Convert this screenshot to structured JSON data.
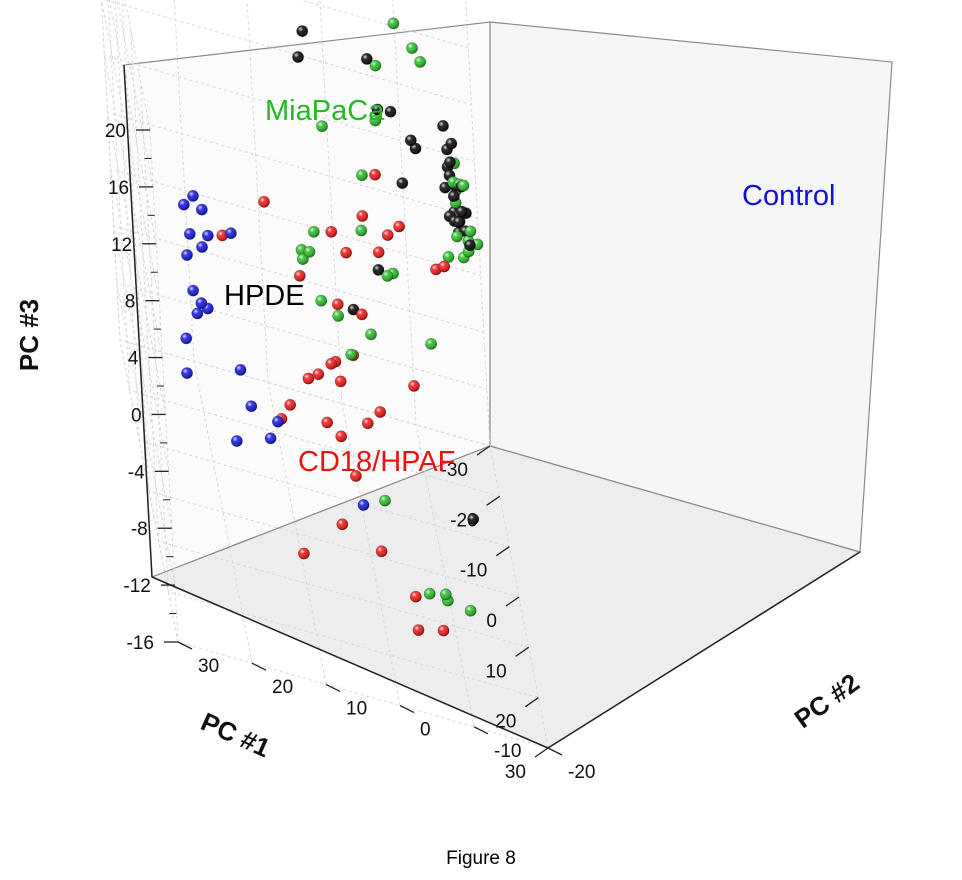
{
  "caption": "Figure 8",
  "chart_data": {
    "type": "scatter",
    "projection": "3d",
    "axes": {
      "x": {
        "label": "PC #1",
        "range": [
          -30,
          30
        ],
        "ticks": [
          -30,
          -20,
          -10,
          0,
          10,
          20,
          30
        ]
      },
      "y": {
        "label": "PC #2",
        "range": [
          -20,
          30
        ],
        "ticks": [
          -20,
          -10,
          0,
          10,
          20,
          30
        ]
      },
      "z": {
        "label": "PC #3",
        "range": [
          -16,
          20
        ],
        "ticks": [
          -16,
          -12,
          -8,
          -4,
          0,
          4,
          8,
          12,
          16,
          20
        ]
      }
    },
    "grid": true,
    "legend": "none",
    "groups": [
      {
        "name": "MiaPaCa",
        "color": "#22bb22"
      },
      {
        "name": "HPDE",
        "color": "#000000"
      },
      {
        "name": "Control",
        "color": "#1010dd"
      },
      {
        "name": "CD18/HPAF",
        "color": "#ee1111"
      }
    ],
    "series": [
      {
        "group": "HPDE",
        "color": "#000000",
        "points": [
          [
            -25.3,
            -15.5,
            7.5
          ],
          [
            -24.8,
            -17.5,
            3.7
          ],
          [
            -24.3,
            -16.1,
            5.4
          ],
          [
            -26.2,
            -16.6,
            6.1
          ],
          [
            -25.0,
            -16.0,
            4.2
          ],
          [
            -24.7,
            -16.4,
            2.9
          ],
          [
            -25.2,
            -15.8,
            4.7
          ],
          [
            -25.8,
            -16.8,
            3.3
          ],
          [
            -24.0,
            -17.3,
            2.2
          ],
          [
            -25.4,
            -18.0,
            1.7
          ],
          [
            -23.7,
            -16.8,
            1.5
          ],
          [
            -26.0,
            -15.4,
            2.9
          ],
          [
            -24.5,
            -16.3,
            1.2
          ],
          [
            -25.6,
            -17.1,
            0.9
          ],
          [
            -25.6,
            -15.9,
            5.8
          ],
          [
            -26.8,
            -17.0,
            -0.3
          ],
          [
            -26.3,
            -17.9,
            0.1
          ],
          [
            -24.2,
            -18.2,
            -0.1
          ],
          [
            -27.0,
            -15.9,
            0.6
          ],
          [
            -28.5,
            -16.7,
            0.5
          ],
          [
            -22.4,
            -10.7,
            6.8
          ],
          [
            -23.6,
            -11.4,
            5.9
          ],
          [
            -22.3,
            -9.2,
            3.6
          ],
          [
            -19.5,
            -5.0,
            12.7
          ],
          [
            -19.8,
            -6.1,
            9.2
          ],
          [
            -21.0,
            -8.0,
            8.9
          ],
          [
            -19.4,
            -5.0,
            -2.1
          ],
          [
            -16.6,
            -1.0,
            -4.5
          ],
          [
            -13.8,
            4.2,
            15.3
          ],
          [
            -12.5,
            5.1,
            13.8
          ],
          [
            17.9,
            -12.6,
            -5.3
          ]
        ]
      },
      {
        "group": "MiaPaCa",
        "color": "#22bb22",
        "points": [
          [
            -27.8,
            -17.0,
            4.2
          ],
          [
            -26.7,
            -16.8,
            1.8
          ],
          [
            -26.1,
            -17.4,
            1.4
          ],
          [
            -26.1,
            -16.9,
            2.9
          ],
          [
            -25.2,
            -17.3,
            3.7
          ],
          [
            -24.4,
            -16.4,
            4.0
          ],
          [
            -25.4,
            -18.5,
            0.5
          ],
          [
            -24.6,
            -17.8,
            3.9
          ],
          [
            -26.2,
            -18.2,
            -0.5
          ],
          [
            -24.3,
            -18.0,
            -0.6
          ],
          [
            -23.6,
            -17.2,
            -0.9
          ],
          [
            -23.4,
            -15.1,
            -1.1
          ],
          [
            -23.2,
            -16.4,
            0.6
          ],
          [
            -26.9,
            -19.5,
            -0.8
          ],
          [
            -20.6,
            -12.4,
            13.2
          ],
          [
            -18.6,
            -11.2,
            14.7
          ],
          [
            -16.2,
            -8.6,
            16.9
          ],
          [
            -13.9,
            -5.6,
            14.3
          ],
          [
            -18.5,
            -5.6,
            8.8
          ],
          [
            -17.6,
            -11.5,
            -5.7
          ],
          [
            -14.5,
            -6.5,
            -0.4
          ],
          [
            -12.7,
            -2.8,
            6.6
          ],
          [
            -10.6,
            2.5,
            10.0
          ],
          [
            -8.4,
            -1.9,
            4.1
          ],
          [
            -12.2,
            -5.5,
            0.1
          ],
          [
            -3.5,
            5.1,
            4.7
          ],
          [
            -1.5,
            7.0,
            3.2
          ],
          [
            -1.6,
            7.1,
            3.8
          ],
          [
            -0.8,
            6.1,
            4.1
          ],
          [
            -2.4,
            4.7,
            0.3
          ],
          [
            3.0,
            3.0,
            1.4
          ],
          [
            -5.7,
            -2.2,
            -2.2
          ],
          [
            -3.2,
            0.9,
            -3.2
          ],
          [
            3.4,
            -2.0,
            -10.7
          ],
          [
            6.5,
            -9.6,
            -15.5
          ],
          [
            7.1,
            -9.3,
            -14.9
          ],
          [
            9.1,
            -6.9,
            -14.5
          ],
          [
            11.1,
            -12.2,
            -14.2
          ]
        ]
      },
      {
        "group": "Control",
        "color": "#1010dd",
        "points": [
          [
            0.9,
            16.9,
            4.4
          ],
          [
            2.7,
            20.9,
            6.1
          ],
          [
            2.7,
            22.0,
            6.9
          ],
          [
            3.1,
            20.3,
            4.5
          ],
          [
            3.2,
            21.2,
            3.6
          ],
          [
            5.6,
            23.0,
            5.1
          ],
          [
            4.5,
            23.5,
            6.7
          ],
          [
            5.2,
            23.5,
            3.4
          ],
          [
            4.6,
            21.0,
            -0.2
          ],
          [
            6.2,
            22.0,
            0.6
          ],
          [
            7.0,
            23.1,
            1.6
          ],
          [
            9.2,
            22.9,
            0.8
          ],
          [
            10.1,
            24.7,
            -0.9
          ],
          [
            10.6,
            24.9,
            -3.2
          ],
          [
            7.0,
            17.2,
            -3.1
          ],
          [
            7.2,
            16.0,
            -5.4
          ],
          [
            9.8,
            18.5,
            -7.3
          ],
          [
            11.8,
            12.9,
            -4.4
          ],
          [
            12.5,
            14.1,
            -5.5
          ],
          [
            12.1,
            1.8,
            -8.5
          ]
        ]
      },
      {
        "group": "CD18/HPAF",
        "color": "#ee1111",
        "points": [
          [
            1.9,
            18.2,
            4.4
          ],
          [
            -18.9,
            -5.2,
            4.8
          ],
          [
            -17.7,
            -8.0,
            2.0
          ],
          [
            -14.9,
            -6.1,
            2.1
          ],
          [
            -13.4,
            -4.6,
            1.2
          ],
          [
            -12.1,
            -2.5,
            3.9
          ],
          [
            -6.6,
            2.4,
            4.0
          ],
          [
            -9.0,
            0.3,
            2.0
          ],
          [
            -1.5,
            11.9,
            6.5
          ],
          [
            -4.0,
            7.3,
            1.1
          ],
          [
            -5.0,
            2.2,
            -0.5
          ],
          [
            -5.8,
            -1.1,
            -1.0
          ],
          [
            -5.8,
            0.4,
            -4.1
          ],
          [
            -2.8,
            2.6,
            -5.2
          ],
          [
            -3.4,
            3.1,
            -4.1
          ],
          [
            -2.4,
            3.8,
            -4.0
          ],
          [
            -0.9,
            5.8,
            -4.5
          ],
          [
            0.3,
            7.3,
            -4.6
          ],
          [
            4.6,
            10.4,
            -5.4
          ],
          [
            6.6,
            11.9,
            -5.9
          ],
          [
            4.0,
            5.4,
            -6.1
          ],
          [
            5.2,
            3.7,
            -6.4
          ],
          [
            -4.5,
            -7.6,
            -4.6
          ],
          [
            -1.7,
            -2.5,
            -6.2
          ],
          [
            -21.5,
            -13.1,
            -1.6
          ],
          [
            -22.0,
            -14.3,
            -1.4
          ],
          [
            4.4,
            1.9,
            -9.2
          ],
          [
            8.3,
            4.5,
            -11.6
          ],
          [
            14.7,
            10.6,
            -12.3
          ],
          [
            7.2,
            -0.8,
            -13.1
          ],
          [
            8.8,
            -5.0,
            -15.1
          ],
          [
            14.2,
            -4.6,
            -15.6
          ],
          [
            12.5,
            -8.2,
            -15.7
          ],
          [
            2.6,
            -0.3,
            -5.8
          ]
        ]
      }
    ]
  }
}
